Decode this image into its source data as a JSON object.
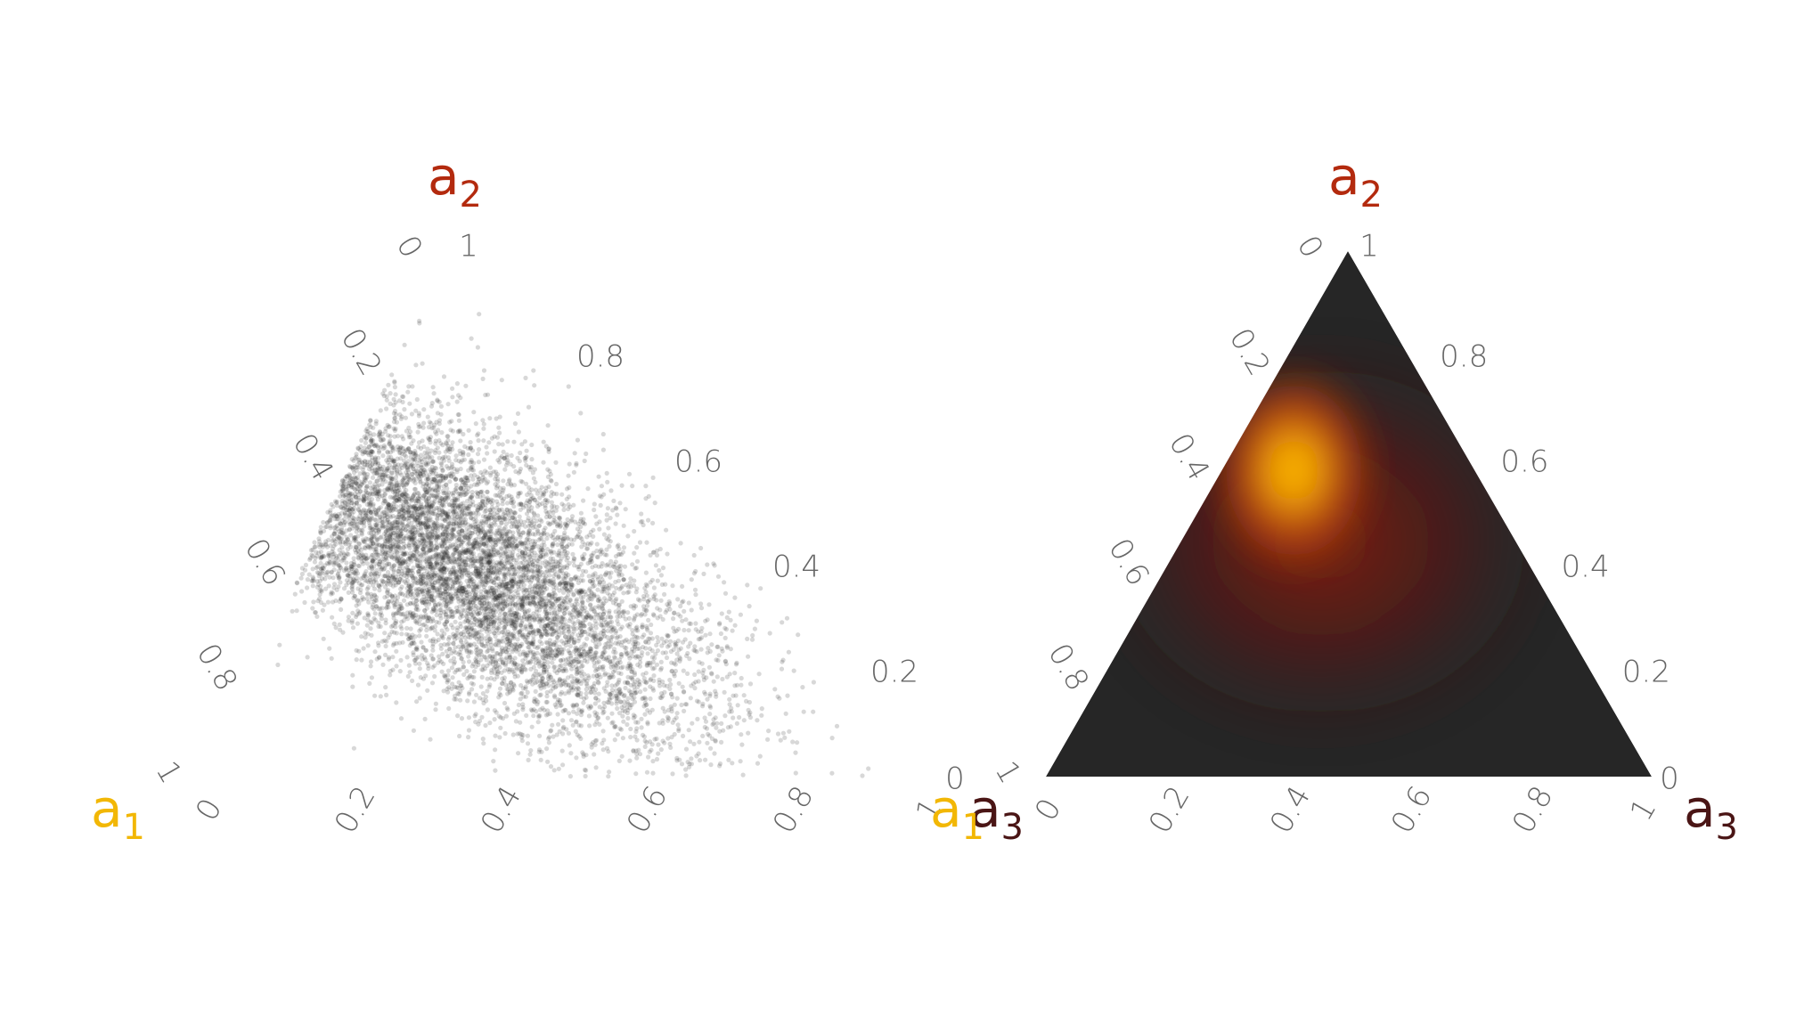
{
  "chart_data": [
    {
      "type": "scatter",
      "subtype": "ternary",
      "title": "",
      "vertices": [
        {
          "name": "a",
          "sub": "1",
          "corner": "bottom-left",
          "color": "#f2b705"
        },
        {
          "name": "a",
          "sub": "2",
          "corner": "top",
          "color": "#b32a0e"
        },
        {
          "name": "a",
          "sub": "3",
          "corner": "bottom-right",
          "color": "#4a1515"
        }
      ],
      "ticks": [
        {
          "axis": "a1",
          "side": "left",
          "labels": [
            "0",
            "0.2",
            "0.4",
            "0.6",
            "0.8",
            "1"
          ]
        },
        {
          "axis": "a2",
          "side": "right",
          "labels": [
            "1",
            "0.8",
            "0.6",
            "0.4",
            "0.2",
            "0"
          ]
        },
        {
          "axis": "a3",
          "side": "bottom",
          "labels": [
            "0",
            "0.2",
            "0.4",
            "0.6",
            "0.8",
            "1"
          ]
        }
      ],
      "point_color": "#262626",
      "point_opacity": 0.18,
      "distribution": {
        "description_free": true,
        "mean": {
          "a1": 0.38,
          "a2": 0.42,
          "a3": 0.2
        },
        "n_points": 9000
      },
      "grid": false,
      "legend": "none"
    },
    {
      "type": "heatmap",
      "subtype": "ternary-density",
      "title": "",
      "vertices": [
        {
          "name": "a",
          "sub": "1",
          "corner": "bottom-left",
          "color": "#f2b705"
        },
        {
          "name": "a",
          "sub": "2",
          "corner": "top",
          "color": "#b32a0e"
        },
        {
          "name": "a",
          "sub": "3",
          "corner": "bottom-right",
          "color": "#4a1515"
        }
      ],
      "ticks": [
        {
          "axis": "a1",
          "side": "left",
          "labels": [
            "0",
            "0.2",
            "0.4",
            "0.6",
            "0.8",
            "1"
          ]
        },
        {
          "axis": "a2",
          "side": "right",
          "labels": [
            "1",
            "0.8",
            "0.6",
            "0.4",
            "0.2",
            "0"
          ]
        },
        {
          "axis": "a3",
          "side": "bottom",
          "labels": [
            "0",
            "0.2",
            "0.4",
            "0.6",
            "0.8",
            "1"
          ]
        }
      ],
      "peak": {
        "a1": 0.29,
        "a2": 0.6,
        "a3": 0.11
      },
      "colorscale": [
        "#262626",
        "#5a1410",
        "#b32a0e",
        "#f2b705"
      ],
      "grid": false,
      "legend": "none"
    }
  ]
}
